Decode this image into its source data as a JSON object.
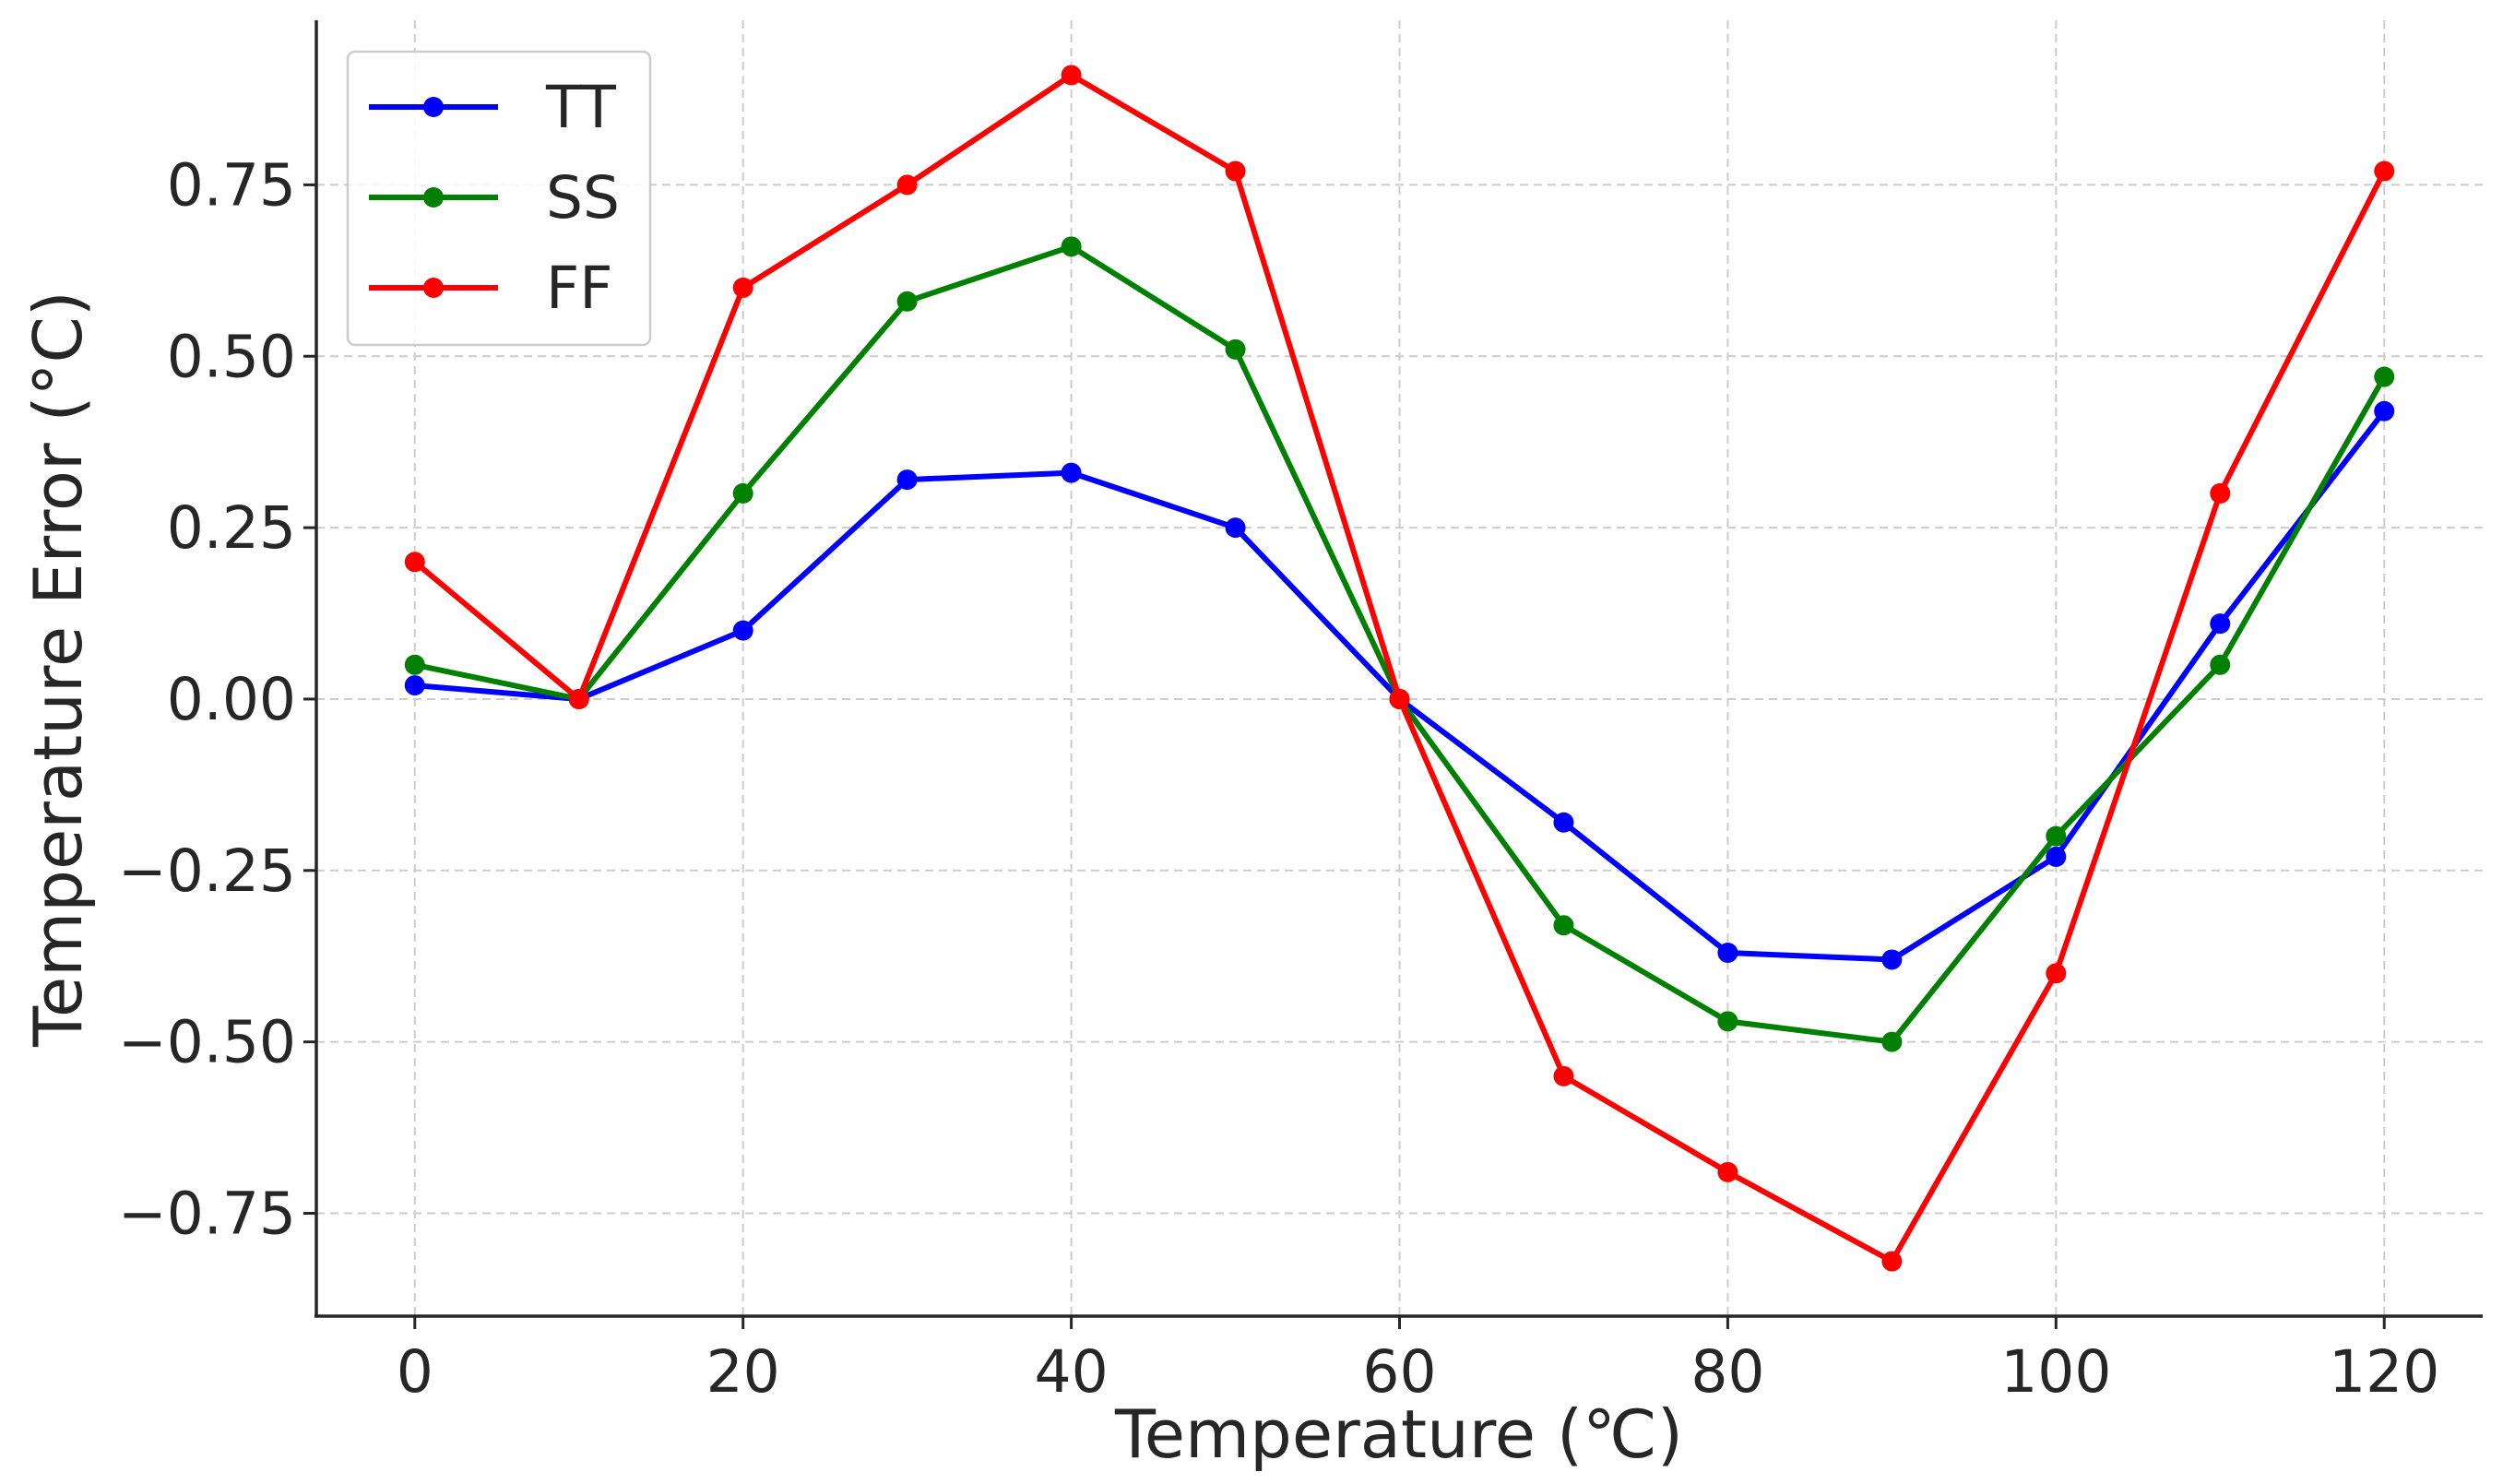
{
  "chart_data": {
    "type": "line",
    "title": "",
    "xlabel": "Temperature (℃)",
    "ylabel": "Temperature Error (°C)",
    "x": [
      0,
      10,
      20,
      30,
      40,
      50,
      60,
      70,
      80,
      90,
      100,
      110,
      120
    ],
    "xlim": [
      -6,
      126
    ],
    "ylim": [
      -0.9,
      0.99
    ],
    "xticks": [
      0,
      20,
      40,
      60,
      80,
      100,
      120
    ],
    "xtick_labels": [
      "0",
      "20",
      "40",
      "60",
      "80",
      "100",
      "120"
    ],
    "yticks": [
      -0.75,
      -0.5,
      -0.25,
      0,
      0.25,
      0.5,
      0.75
    ],
    "ytick_labels": [
      "−0.75",
      "−0.50",
      "−0.25",
      "0.00",
      "0.25",
      "0.50",
      "0.75"
    ],
    "grid": true,
    "legend_position": "top-left",
    "series": [
      {
        "name": "TT",
        "color": "#0000ff",
        "values": [
          0.02,
          0.0,
          0.1,
          0.32,
          0.33,
          0.25,
          0.0,
          -0.18,
          -0.37,
          -0.38,
          -0.23,
          0.11,
          0.42
        ]
      },
      {
        "name": "SS",
        "color": "#008000",
        "values": [
          0.05,
          0.0,
          0.3,
          0.58,
          0.66,
          0.51,
          0.0,
          -0.33,
          -0.47,
          -0.5,
          -0.2,
          0.05,
          0.47
        ]
      },
      {
        "name": "FF",
        "color": "#ff0000",
        "values": [
          0.2,
          0.0,
          0.6,
          0.75,
          0.91,
          0.77,
          0.0,
          -0.55,
          -0.69,
          -0.82,
          -0.4,
          0.3,
          0.77
        ]
      }
    ]
  }
}
